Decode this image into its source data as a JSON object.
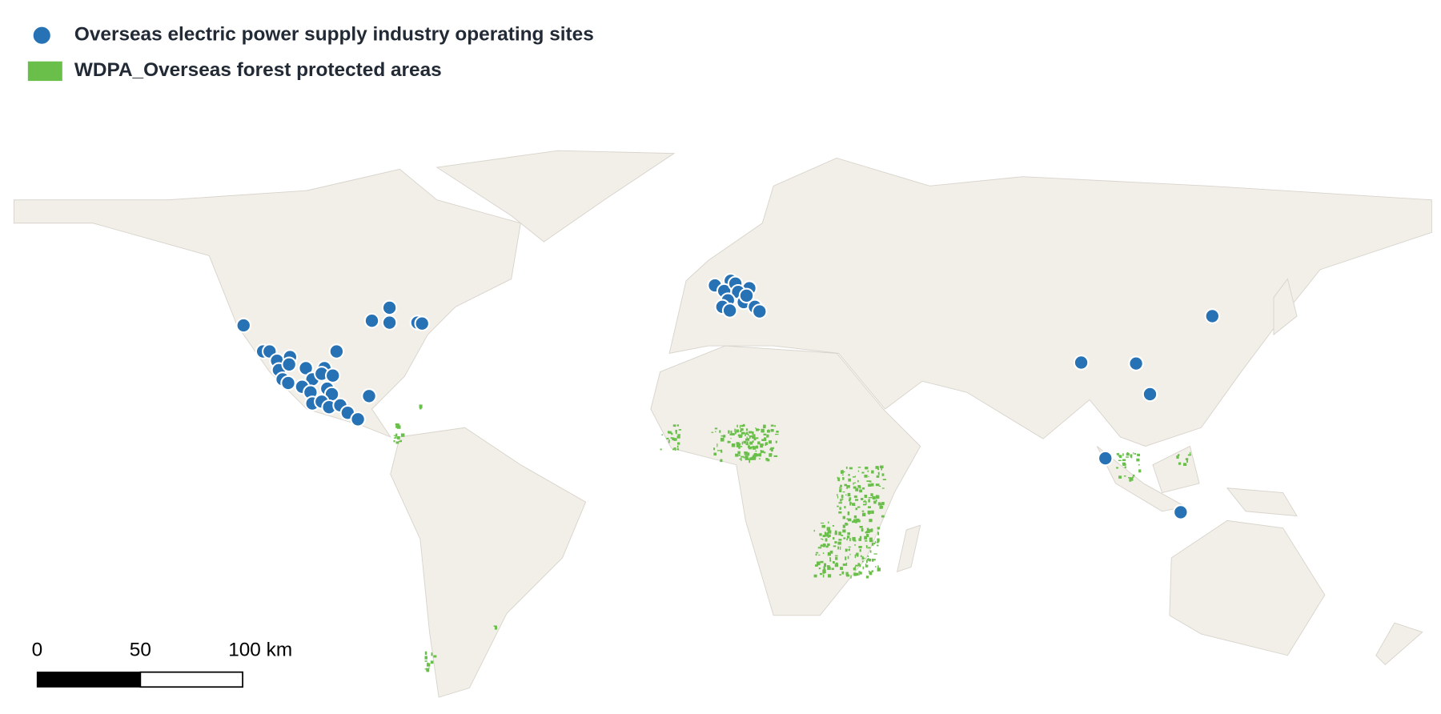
{
  "legend": {
    "items": [
      "Overseas electric power supply industry operating sites",
      "WDPA_Overseas forest protected areas"
    ]
  },
  "scale_bar": {
    "labels": [
      "0",
      "50",
      "100 km"
    ]
  }
}
